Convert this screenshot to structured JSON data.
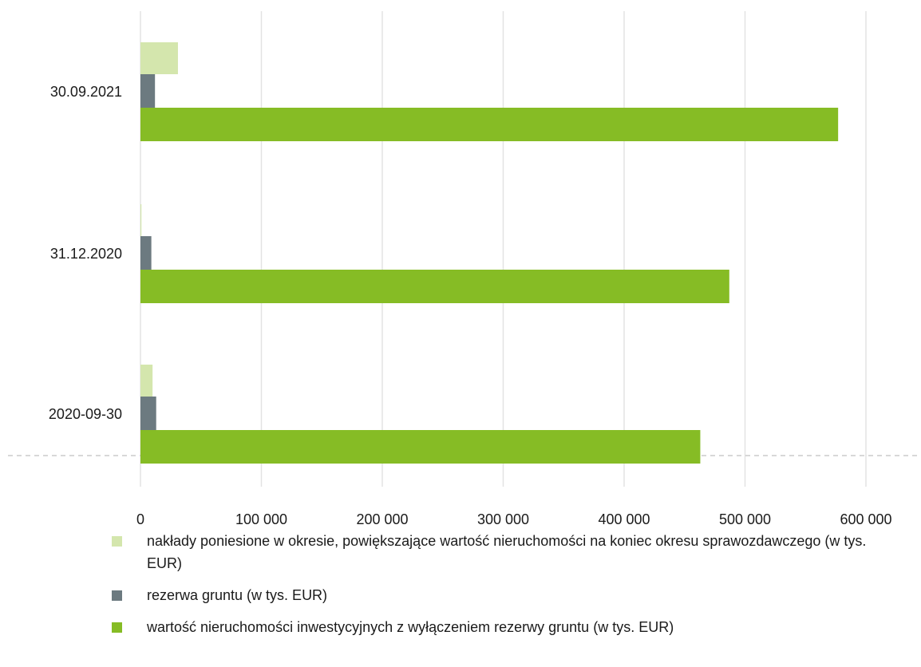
{
  "chart_data": {
    "type": "bar",
    "orientation": "horizontal",
    "categories": [
      "30.09.2021",
      "31.12.2020",
      "2020-09-30"
    ],
    "series": [
      {
        "name": "nakłady poniesione w okresie, powiększające wartość nieruchomości na koniec okresu sprawozdawczego (w tys. EUR)",
        "color": "#d4e6ad",
        "values": [
          31000,
          800,
          10000
        ]
      },
      {
        "name": "rezerwa gruntu (w tys. EUR)",
        "color": "#6c7a80",
        "values": [
          12000,
          9000,
          13000
        ]
      },
      {
        "name": "wartość nieruchomości inwestycyjnych z wyłączeniem rezerwy gruntu (w tys. EUR)",
        "color": "#86bc25",
        "values": [
          577000,
          487000,
          463000
        ]
      }
    ],
    "xlim": [
      0,
      600000
    ],
    "xticks": [
      "0",
      "100 000",
      "200 000",
      "300 000",
      "400 000",
      "500 000",
      "600 000"
    ],
    "grid": true,
    "legend_position": "bottom"
  }
}
